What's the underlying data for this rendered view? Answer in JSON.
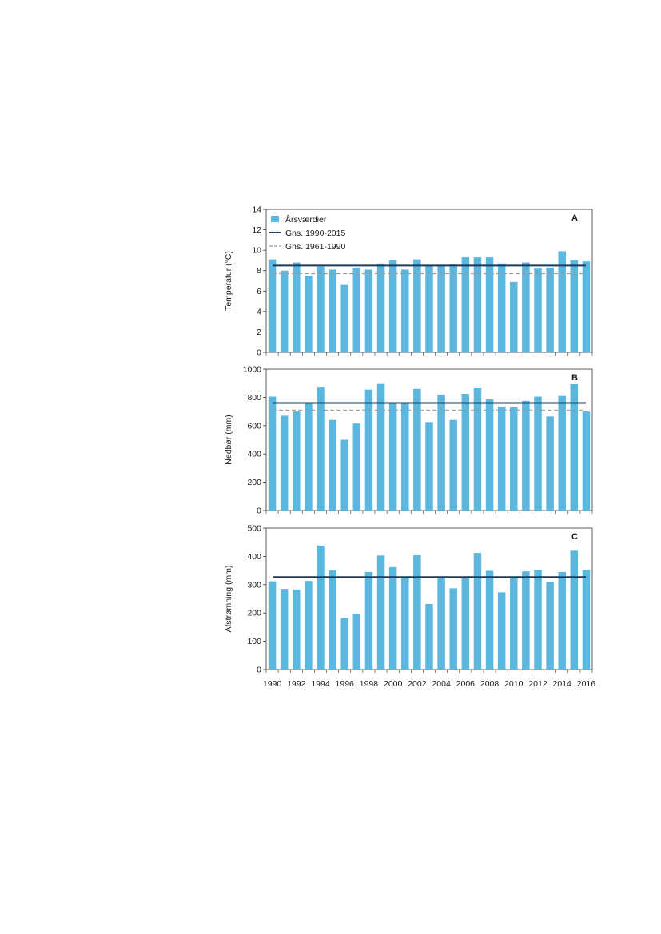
{
  "chart_data": [
    {
      "type": "bar",
      "panel_label": "A",
      "ylabel": "Temperatur (°C)",
      "ylim": [
        0,
        14
      ],
      "yticks": [
        0,
        2,
        4,
        6,
        8,
        10,
        12,
        14
      ],
      "x": [
        1990,
        1991,
        1992,
        1993,
        1994,
        1995,
        1996,
        1997,
        1998,
        1999,
        2000,
        2001,
        2002,
        2003,
        2004,
        2005,
        2006,
        2007,
        2008,
        2009,
        2010,
        2011,
        2012,
        2013,
        2014,
        2015,
        2016
      ],
      "values": [
        9.1,
        8.0,
        8.8,
        7.5,
        8.4,
        8.1,
        6.6,
        8.3,
        8.1,
        8.7,
        9.0,
        8.1,
        9.1,
        8.5,
        8.5,
        8.6,
        9.3,
        9.3,
        9.3,
        8.7,
        6.9,
        8.8,
        8.2,
        8.3,
        9.9,
        9.0,
        8.9
      ],
      "bar_color": "#5ab8e0",
      "reference_lines": [
        {
          "name": "Gns. 1990-2015",
          "value": 8.5,
          "style": "solid",
          "color": "#1b3a5c"
        },
        {
          "name": "Gns. 1961-1990",
          "value": 7.7,
          "style": "dashed",
          "color": "#9a9a9a"
        }
      ],
      "legend": {
        "entries": [
          {
            "label": "Årsværdier",
            "kind": "bar",
            "color": "#5ab8e0"
          },
          {
            "label": "Gns. 1990-2015",
            "kind": "solid",
            "color": "#1b3a5c"
          },
          {
            "label": "Gns. 1961-1990",
            "kind": "dashed",
            "color": "#9a9a9a"
          }
        ],
        "placement": "top-left"
      }
    },
    {
      "type": "bar",
      "panel_label": "B",
      "ylabel": "Nedbør (mm)",
      "ylim": [
        0,
        1000
      ],
      "yticks": [
        0,
        200,
        400,
        600,
        800,
        1000
      ],
      "x": [
        1990,
        1991,
        1992,
        1993,
        1994,
        1995,
        1996,
        1997,
        1998,
        1999,
        2000,
        2001,
        2002,
        2003,
        2004,
        2005,
        2006,
        2007,
        2008,
        2009,
        2010,
        2011,
        2012,
        2013,
        2014,
        2015,
        2016
      ],
      "values": [
        805,
        670,
        700,
        755,
        875,
        640,
        500,
        615,
        855,
        900,
        765,
        755,
        860,
        625,
        820,
        640,
        825,
        870,
        785,
        735,
        730,
        775,
        805,
        665,
        810,
        895,
        700
      ],
      "bar_color": "#5ab8e0",
      "reference_lines": [
        {
          "name": "Gns. 1990-2015",
          "value": 760,
          "style": "solid",
          "color": "#1b3a5c"
        },
        {
          "name": "Gns. 1961-1990",
          "value": 710,
          "style": "dashed",
          "color": "#9a9a9a"
        }
      ]
    },
    {
      "type": "bar",
      "panel_label": "C",
      "ylabel": "Afstrømning (mm)",
      "ylim": [
        0,
        500
      ],
      "yticks": [
        0,
        100,
        200,
        300,
        400,
        500
      ],
      "x": [
        1990,
        1991,
        1992,
        1993,
        1994,
        1995,
        1996,
        1997,
        1998,
        1999,
        2000,
        2001,
        2002,
        2003,
        2004,
        2005,
        2006,
        2007,
        2008,
        2009,
        2010,
        2011,
        2012,
        2013,
        2014,
        2015,
        2016
      ],
      "xticks": [
        "1990",
        "1992",
        "1994",
        "1996",
        "1998",
        "2000",
        "2002",
        "2004",
        "2006",
        "2008",
        "2010",
        "2012",
        "2014",
        "2016"
      ],
      "values": [
        312,
        285,
        283,
        313,
        438,
        350,
        182,
        198,
        345,
        403,
        362,
        322,
        404,
        232,
        327,
        287,
        322,
        412,
        349,
        273,
        322,
        347,
        352,
        310,
        345,
        420,
        352
      ],
      "bar_color": "#5ab8e0",
      "reference_lines": [
        {
          "name": "Gns. 1990-2015",
          "value": 327,
          "style": "solid",
          "color": "#1b3a5c"
        }
      ]
    }
  ]
}
